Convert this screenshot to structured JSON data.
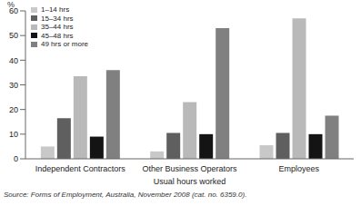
{
  "chart_data": {
    "type": "bar",
    "y_label": "%",
    "x_label": "Usual hours worked",
    "source": "Source: Forms of Employment, Australia, November 2008 (cat. no. 6359.0).",
    "categories": [
      "Independent Contractors",
      "Other Business Operators",
      "Employees"
    ],
    "series": [
      {
        "name": "1–14 hrs",
        "color": "#c8c8c8",
        "values": [
          5,
          3,
          5.5
        ]
      },
      {
        "name": "15–34 hrs",
        "color": "#5f5f5f",
        "values": [
          16.5,
          10.5,
          10.5
        ]
      },
      {
        "name": "35–44 hrs",
        "color": "#b9b9b9",
        "values": [
          33.5,
          23,
          57
        ]
      },
      {
        "name": "45–48 hrs",
        "color": "#141414",
        "values": [
          9,
          10,
          10
        ]
      },
      {
        "name": "49 hrs or more",
        "color": "#808080",
        "values": [
          36,
          53,
          17.5
        ]
      }
    ],
    "ylim": [
      0,
      60
    ],
    "yticks": [
      0,
      10,
      20,
      30,
      40,
      50,
      60
    ],
    "grid": false,
    "legend": "top-left"
  }
}
